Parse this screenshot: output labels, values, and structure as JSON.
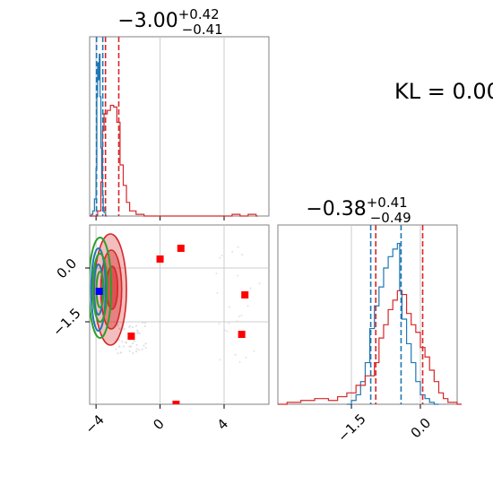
{
  "chart_data": [
    {
      "type": "histogram",
      "panel": "top-left marginal",
      "title": {
        "median": "−3.00",
        "upper": "+0.42",
        "lower": "−0.41"
      },
      "xlim": [
        -4.4,
        6.8
      ],
      "x_ticks": [
        -4,
        0,
        4
      ],
      "grid": true,
      "series": [
        {
          "color": "#1f77b4",
          "bins": [
            [
              -4.4,
              0
            ],
            [
              -4.3,
              1
            ],
            [
              -4.2,
              3
            ],
            [
              -4.1,
              10
            ],
            [
              -4.0,
              28
            ],
            [
              -3.95,
              70
            ],
            [
              -3.9,
              90
            ],
            [
              -3.85,
              80
            ],
            [
              -3.8,
              95
            ],
            [
              -3.75,
              70
            ],
            [
              -3.7,
              40
            ],
            [
              -3.65,
              22
            ],
            [
              -3.6,
              12
            ],
            [
              -3.55,
              5
            ],
            [
              -3.5,
              2
            ],
            [
              -3.4,
              0
            ]
          ],
          "quantiles": [
            -3.97,
            -3.58
          ]
        },
        {
          "color": "#d62728",
          "bins": [
            [
              -4.4,
              0
            ],
            [
              -3.9,
              3
            ],
            [
              -3.7,
              20
            ],
            [
              -3.6,
              50
            ],
            [
              -3.5,
              60
            ],
            [
              -3.3,
              62
            ],
            [
              -3.1,
              65
            ],
            [
              -2.9,
              64
            ],
            [
              -2.7,
              55
            ],
            [
              -2.5,
              30
            ],
            [
              -2.3,
              18
            ],
            [
              -2.1,
              8
            ],
            [
              -1.9,
              3
            ],
            [
              -1.5,
              1
            ],
            [
              -1.0,
              0
            ],
            [
              4.5,
              1
            ],
            [
              5.0,
              0
            ],
            [
              5.5,
              1
            ],
            [
              6.0,
              0
            ]
          ],
          "quantiles": [
            -3.41,
            -2.58
          ]
        }
      ]
    },
    {
      "type": "histogram",
      "panel": "bottom-right marginal",
      "title": {
        "median": "−0.38",
        "upper": "+0.41",
        "lower": "−0.49"
      },
      "xlim": [
        -3.1,
        0.8
      ],
      "x_ticks": [
        -1.5,
        0.0
      ],
      "x_tick_labels": [
        "−1.5",
        "0.0"
      ],
      "grid": true,
      "series": [
        {
          "color": "#1f77b4",
          "bins": [
            [
              -1.6,
              0
            ],
            [
              -1.5,
              2
            ],
            [
              -1.4,
              5
            ],
            [
              -1.3,
              12
            ],
            [
              -1.2,
              22
            ],
            [
              -1.1,
              40
            ],
            [
              -1.0,
              52
            ],
            [
              -0.9,
              62
            ],
            [
              -0.8,
              72
            ],
            [
              -0.7,
              78
            ],
            [
              -0.6,
              82
            ],
            [
              -0.5,
              85
            ],
            [
              -0.45,
              60
            ],
            [
              -0.4,
              45
            ],
            [
              -0.3,
              32
            ],
            [
              -0.2,
              22
            ],
            [
              -0.1,
              12
            ],
            [
              0.0,
              5
            ],
            [
              0.1,
              3
            ],
            [
              0.2,
              1
            ],
            [
              0.3,
              0
            ]
          ],
          "quantiles": [
            -1.08,
            -0.42
          ]
        },
        {
          "color": "#d62728",
          "bins": [
            [
              -3.1,
              0
            ],
            [
              -2.9,
              1
            ],
            [
              -2.6,
              2
            ],
            [
              -2.3,
              3
            ],
            [
              -2.0,
              2
            ],
            [
              -1.8,
              4
            ],
            [
              -1.6,
              6
            ],
            [
              -1.4,
              10
            ],
            [
              -1.2,
              15
            ],
            [
              -1.0,
              22
            ],
            [
              -0.9,
              35
            ],
            [
              -0.8,
              42
            ],
            [
              -0.7,
              50
            ],
            [
              -0.6,
              55
            ],
            [
              -0.5,
              60
            ],
            [
              -0.4,
              58
            ],
            [
              -0.3,
              48
            ],
            [
              -0.2,
              42
            ],
            [
              -0.1,
              38
            ],
            [
              0.0,
              30
            ],
            [
              0.1,
              25
            ],
            [
              0.2,
              18
            ],
            [
              0.3,
              12
            ],
            [
              0.4,
              6
            ],
            [
              0.5,
              3
            ],
            [
              0.6,
              1
            ],
            [
              0.8,
              0
            ]
          ],
          "quantiles": [
            -0.97,
            0.05
          ]
        }
      ]
    },
    {
      "type": "scatter-contour",
      "panel": "bottom-left joint",
      "xlim": [
        -4.4,
        6.8
      ],
      "ylim": [
        -3.8,
        1.2
      ],
      "x_ticks": [
        -4,
        0,
        4
      ],
      "y_ticks": [
        0.0,
        -1.5
      ],
      "y_tick_labels": [
        "0.0",
        "−1.5"
      ],
      "grid": true,
      "red_squares": [
        [
          0.0,
          0.25
        ],
        [
          1.3,
          0.55
        ],
        [
          -1.8,
          -1.9
        ],
        [
          5.3,
          -0.75
        ],
        [
          5.1,
          -1.85
        ],
        [
          1.0,
          -3.8
        ]
      ],
      "blue_squares": [
        [
          -3.8,
          -0.65
        ]
      ],
      "red_contours": [
        {
          "cx": -3.1,
          "cy": -0.6,
          "rx": 1.0,
          "ry": 1.55,
          "alpha": 0.55
        },
        {
          "cx": -3.05,
          "cy": -0.6,
          "rx": 0.65,
          "ry": 1.1,
          "alpha": 0.75
        },
        {
          "cx": -3.0,
          "cy": -0.55,
          "rx": 0.35,
          "ry": 0.6,
          "alpha": 0.95
        }
      ],
      "blue_contours": [
        {
          "cx": -3.85,
          "cy": -0.6,
          "rx": 0.45,
          "ry": 1.15
        },
        {
          "cx": -3.85,
          "cy": -0.6,
          "rx": 0.28,
          "ry": 0.7
        }
      ],
      "green_contours": [
        {
          "cx": -3.75,
          "cy": -0.55,
          "rx": 0.7,
          "ry": 1.4
        },
        {
          "cx": -3.75,
          "cy": -0.55,
          "rx": 0.45,
          "ry": 0.95
        },
        {
          "cx": -3.75,
          "cy": -0.6,
          "rx": 0.22,
          "ry": 0.5
        }
      ]
    }
  ],
  "kl_text": "KL = 0.00"
}
